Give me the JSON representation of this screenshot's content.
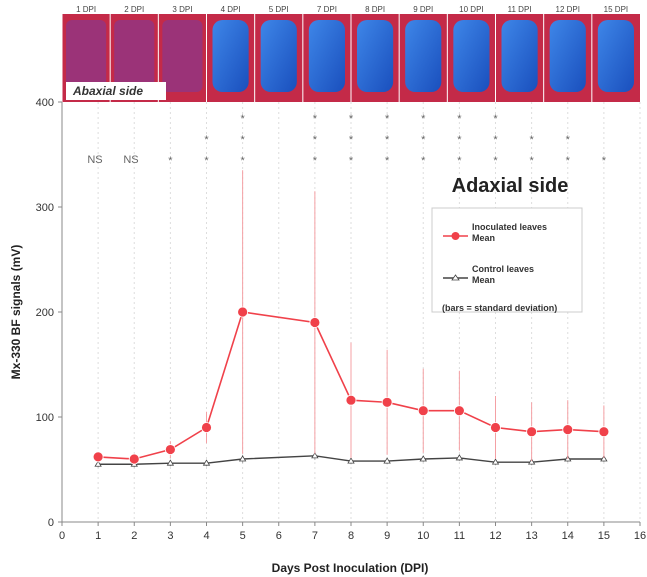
{
  "chart_data": {
    "type": "line",
    "title": "Adaxial side",
    "xlabel": "Days Post Inoculation (DPI)",
    "ylabel": "Mx-330 BF signals (mV)",
    "xlim": [
      0,
      16
    ],
    "ylim": [
      0,
      400
    ],
    "xticks": [
      "0",
      "1",
      "2",
      "3",
      "4",
      "5",
      "6",
      "7",
      "8",
      "9",
      "10",
      "11",
      "12",
      "13",
      "14",
      "15",
      "16"
    ],
    "yticks": [
      "0",
      "100",
      "200",
      "300",
      "400"
    ],
    "grid": true,
    "legend_position": "right",
    "legend_note": "(bars = standard deviation)",
    "image_strip": {
      "label": "Abaxial side",
      "panel_labels": [
        "1 DPI",
        "2 DPI",
        "3 DPI",
        "4 DPI",
        "5 DPI",
        "7 DPI",
        "8 DPI",
        "9 DPI",
        "10 DPI",
        "11 DPI",
        "12 DPI",
        "15 DPI"
      ]
    },
    "significance": {
      "ns_labels": [
        {
          "x": 3,
          "text": "NS"
        },
        {
          "x": 2,
          "text": "NS"
        }
      ],
      "asterisks": [
        {
          "x": 3,
          "rows": 1
        },
        {
          "x": 4,
          "rows": 2
        },
        {
          "x": 5,
          "rows": 3
        },
        {
          "x": 7,
          "rows": 3
        },
        {
          "x": 8,
          "rows": 3
        },
        {
          "x": 9,
          "rows": 3
        },
        {
          "x": 10,
          "rows": 3
        },
        {
          "x": 11,
          "rows": 3
        },
        {
          "x": 12,
          "rows": 3
        },
        {
          "x": 13,
          "rows": 2
        },
        {
          "x": 14,
          "rows": 2
        },
        {
          "x": 15,
          "rows": 1
        }
      ]
    },
    "series": [
      {
        "name": "Inoculated leaves Mean",
        "legend_lines": [
          "Inoculated leaves",
          "Mean"
        ],
        "color": "#f0414a",
        "x": [
          1,
          2,
          3,
          4,
          5,
          7,
          8,
          9,
          10,
          11,
          12,
          13,
          14,
          15
        ],
        "y": [
          62,
          60,
          69,
          90,
          200,
          190,
          116,
          114,
          106,
          106,
          90,
          86,
          88,
          86
        ],
        "error": [
          5,
          5,
          8,
          15,
          135,
          125,
          55,
          50,
          40,
          38,
          30,
          28,
          28,
          25
        ]
      },
      {
        "name": "Control leaves Mean",
        "legend_lines": [
          "Control leaves",
          "Mean"
        ],
        "color": "#444444",
        "x": [
          1,
          2,
          3,
          4,
          5,
          7,
          8,
          9,
          10,
          11,
          12,
          13,
          14,
          15
        ],
        "y": [
          55,
          55,
          56,
          56,
          60,
          63,
          58,
          58,
          60,
          61,
          57,
          57,
          60,
          60
        ],
        "error": [
          3,
          3,
          3,
          3,
          4,
          4,
          3,
          3,
          3,
          3,
          3,
          3,
          3,
          3
        ]
      }
    ]
  }
}
